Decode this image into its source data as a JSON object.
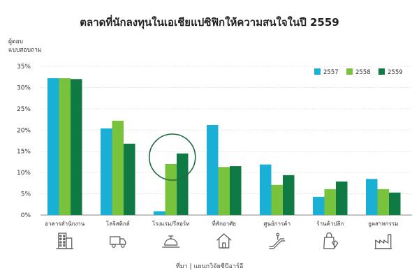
{
  "chart_data": {
    "type": "bar",
    "title": "ตลาดที่นักลงทุนในเอเชียแปซิฟิกให้ความสนใจในปี 2559",
    "ylabel": "ผู้ตอบ แบบสอบถาม",
    "xlabel": "",
    "ylim": [
      0,
      35
    ],
    "yticks": [
      "0%",
      "5%",
      "10%",
      "15%",
      "20%",
      "25%",
      "30%",
      "35%"
    ],
    "ytick_values": [
      0,
      5,
      10,
      15,
      20,
      25,
      30,
      35
    ],
    "grid": true,
    "legend_position": "top-right",
    "categories": [
      "อาคารสำนักงาน",
      "โลจิสติกส์",
      "โรงแรม/รีสอร์ท",
      "ที่พักอาศัย",
      "ศูนย์การค้า",
      "ร้านค้าปลีก",
      "ยูตสาหกรรม"
    ],
    "category_icons": [
      "office-building-icon",
      "delivery-truck-icon",
      "hotel-bell-icon",
      "house-icon",
      "escalator-icon",
      "shopping-bag-icon",
      "factory-icon"
    ],
    "series": [
      {
        "name": "2557",
        "color": "#1ab0d6",
        "values": [
          32.2,
          20.4,
          0.9,
          21.2,
          11.9,
          4.3,
          8.5
        ]
      },
      {
        "name": "2558",
        "color": "#79c23c",
        "values": [
          32.2,
          22.2,
          12.0,
          11.3,
          7.1,
          6.1,
          6.1
        ]
      },
      {
        "name": "2559",
        "color": "#107a44",
        "values": [
          32.0,
          16.8,
          14.5,
          11.5,
          9.4,
          7.9,
          5.3
        ]
      }
    ],
    "highlight_category": "โรงแรม/รีสอร์ท",
    "source": "ที่มา | แผนกวิจัยซีบีอาร์อี"
  }
}
